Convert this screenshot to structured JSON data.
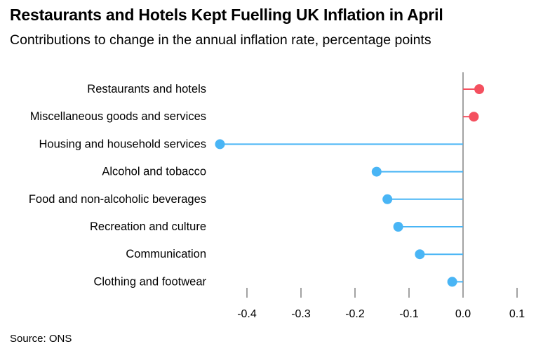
{
  "title": "Restaurants and Hotels Kept Fuelling UK Inflation in April",
  "subtitle": "Contributions to change in the annual inflation rate, percentage points",
  "source": "Source: ONS",
  "colors": {
    "positive": "#f4505f",
    "negative": "#49b5f5",
    "zero_line": "#444444",
    "ticks": "#444444"
  },
  "chart_data": {
    "type": "lollipop",
    "orientation": "horizontal",
    "categories": [
      "Restaurants and hotels",
      "Miscellaneous goods and services",
      "Housing and household services",
      "Alcohol and tobacco",
      "Food and non-alcoholic beverages",
      "Recreation and culture",
      "Communication",
      "Clothing and footwear"
    ],
    "values": [
      0.03,
      0.02,
      -0.45,
      -0.16,
      -0.14,
      -0.12,
      -0.08,
      -0.02
    ],
    "xlim": [
      -0.47,
      0.1
    ],
    "xticks": [
      -0.4,
      -0.3,
      -0.2,
      -0.1,
      0.0,
      0.1
    ],
    "xtick_labels": [
      "-0.4",
      "-0.3",
      "-0.2",
      "-0.1",
      "0.0",
      "0.1"
    ],
    "grid": false,
    "legend": "none"
  }
}
